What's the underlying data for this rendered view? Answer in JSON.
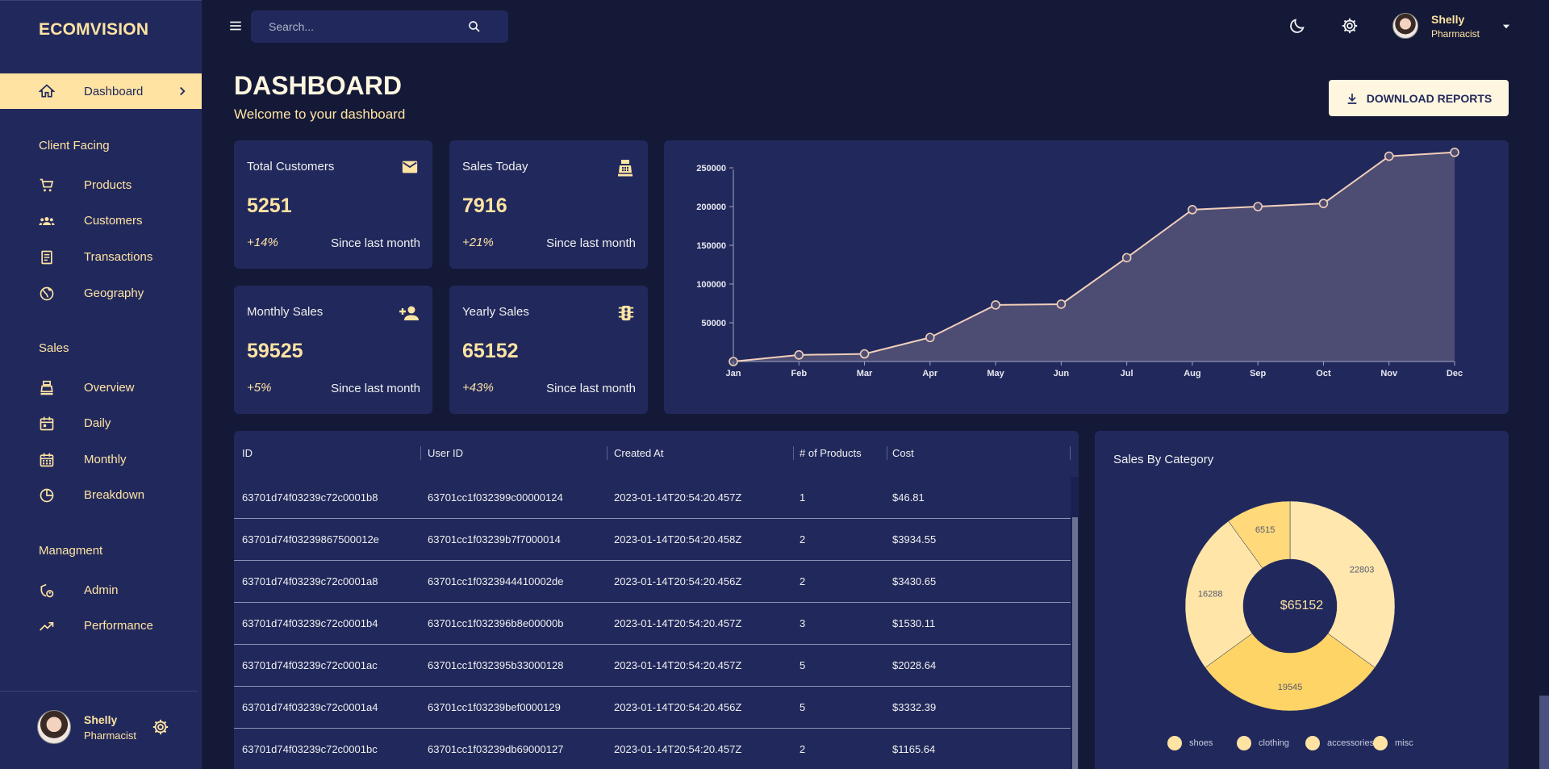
{
  "brand": "ECOMVISION",
  "colors": {
    "primary_bg": "#141937",
    "panel_bg": "#21295c",
    "accent": "#ffe3a3",
    "button_bg": "#fff6e0"
  },
  "sidebar": {
    "active": {
      "label": "Dashboard",
      "icon": "home-icon"
    },
    "sections": [
      {
        "title": "Client Facing",
        "items": [
          {
            "label": "Products",
            "icon": "shopping-cart-icon"
          },
          {
            "label": "Customers",
            "icon": "groups-icon"
          },
          {
            "label": "Transactions",
            "icon": "receipt-icon"
          },
          {
            "label": "Geography",
            "icon": "globe-icon"
          }
        ]
      },
      {
        "title": "Sales",
        "items": [
          {
            "label": "Overview",
            "icon": "point-of-sale-icon"
          },
          {
            "label": "Daily",
            "icon": "calendar-today-icon"
          },
          {
            "label": "Monthly",
            "icon": "calendar-month-icon"
          },
          {
            "label": "Breakdown",
            "icon": "pie-chart-icon"
          }
        ]
      },
      {
        "title": "Managment",
        "items": [
          {
            "label": "Admin",
            "icon": "admin-icon"
          },
          {
            "label": "Performance",
            "icon": "trending-up-icon"
          }
        ]
      }
    ],
    "user": {
      "name": "Shelly",
      "role": "Pharmacist"
    }
  },
  "topbar": {
    "search_placeholder": "Search...",
    "user": {
      "name": "Shelly",
      "role": "Pharmacist"
    }
  },
  "header": {
    "title": "DASHBOARD",
    "subtitle": "Welcome to your dashboard",
    "download_label": "DOWNLOAD REPORTS"
  },
  "stats": [
    {
      "title": "Total Customers",
      "value": "5251",
      "change": "+14%",
      "since": "Since last month",
      "icon": "email-icon"
    },
    {
      "title": "Sales Today",
      "value": "7916",
      "change": "+21%",
      "since": "Since last month",
      "icon": "point-of-sale-icon"
    },
    {
      "title": "Monthly Sales",
      "value": "59525",
      "change": "+5%",
      "since": "Since last month",
      "icon": "person-add-icon"
    },
    {
      "title": "Yearly Sales",
      "value": "65152",
      "change": "+43%",
      "since": "Since last month",
      "icon": "traffic-icon"
    }
  ],
  "chart_data": [
    {
      "type": "area",
      "categories": [
        "Jan",
        "Feb",
        "Mar",
        "Apr",
        "May",
        "Jun",
        "Jul",
        "Aug",
        "Sep",
        "Oct",
        "Nov",
        "Dec"
      ],
      "values": [
        0,
        8500,
        9800,
        31000,
        73000,
        74000,
        134000,
        196000,
        200000,
        204000,
        265000,
        270000
      ],
      "yticks": [
        "50000",
        "100000",
        "150000",
        "200000",
        "250000"
      ],
      "ylim": [
        0,
        275000
      ],
      "grid": false,
      "line_color": "#f2cfbb",
      "fill_color": "#4d4d73"
    },
    {
      "type": "pie",
      "title": "Sales By Category",
      "center_label": "$65152",
      "slices": [
        {
          "name": "shoes",
          "value": 22803,
          "label": "22803",
          "color": "#ffe7ad"
        },
        {
          "name": "clothing",
          "value": 19545,
          "label": "19545",
          "color": "#ffd466"
        },
        {
          "name": "accessories",
          "value": 16288,
          "label": "16288",
          "color": "#ffe6a8"
        },
        {
          "name": "misc",
          "value": 6515,
          "label": "6515",
          "color": "#ffd97a"
        }
      ]
    }
  ],
  "table": {
    "columns": [
      "ID",
      "User ID",
      "Created At",
      "# of Products",
      "Cost"
    ],
    "rows": [
      [
        "63701d74f03239c72c0001b8",
        "63701cc1f032399c00000124",
        "2023-01-14T20:54:20.457Z",
        "1",
        "$46.81"
      ],
      [
        "63701d74f03239867500012e",
        "63701cc1f03239b7f7000014",
        "2023-01-14T20:54:20.458Z",
        "2",
        "$3934.55"
      ],
      [
        "63701d74f03239c72c0001a8",
        "63701cc1f0323944410002de",
        "2023-01-14T20:54:20.456Z",
        "2",
        "$3430.65"
      ],
      [
        "63701d74f03239c72c0001b4",
        "63701cc1f032396b8e00000b",
        "2023-01-14T20:54:20.457Z",
        "3",
        "$1530.11"
      ],
      [
        "63701d74f03239c72c0001ac",
        "63701cc1f032395b33000128",
        "2023-01-14T20:54:20.457Z",
        "5",
        "$2028.64"
      ],
      [
        "63701d74f03239c72c0001a4",
        "63701cc1f03239bef0000129",
        "2023-01-14T20:54:20.456Z",
        "5",
        "$3332.39"
      ],
      [
        "63701d74f03239c72c0001bc",
        "63701cc1f03239db69000127",
        "2023-01-14T20:54:20.457Z",
        "2",
        "$1165.64"
      ]
    ]
  }
}
